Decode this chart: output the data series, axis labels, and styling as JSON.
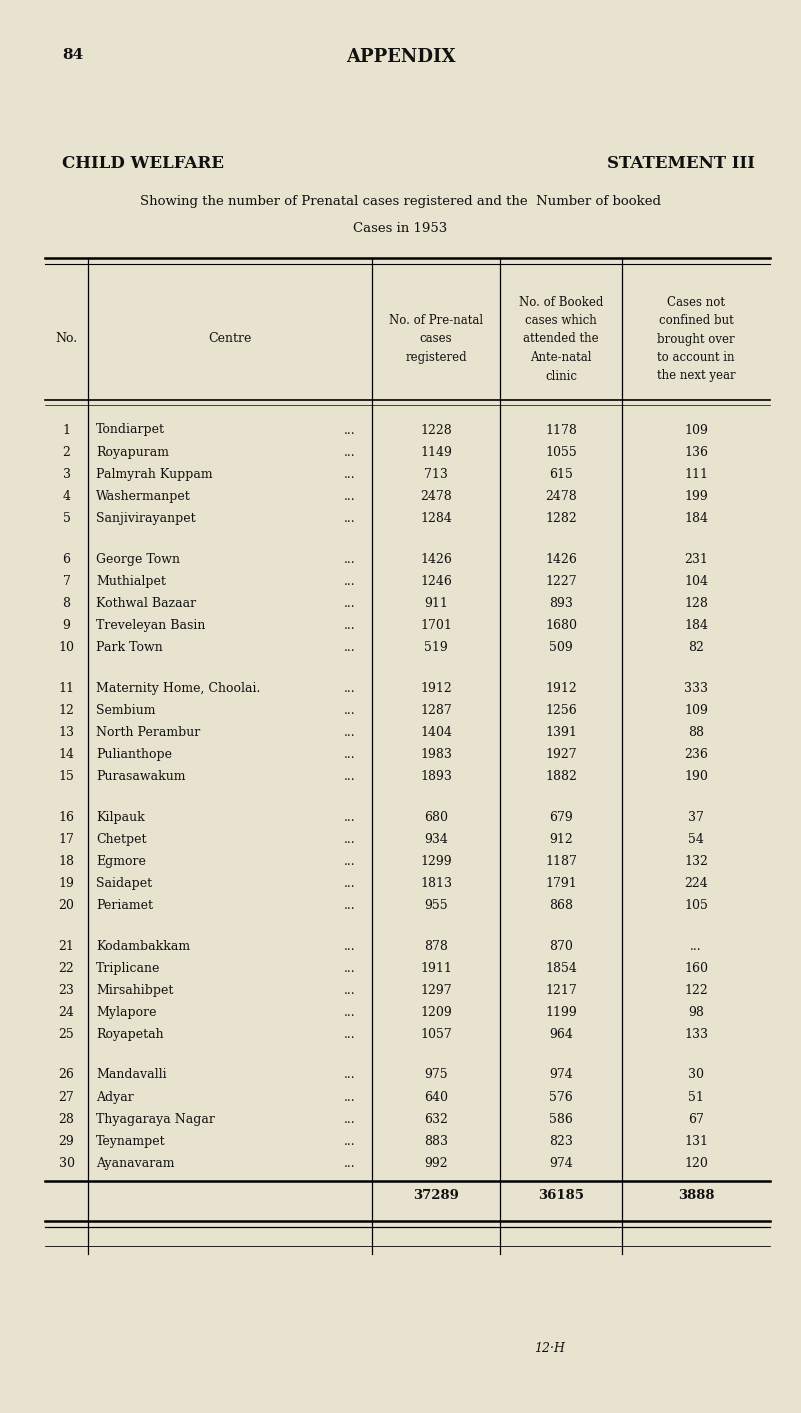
{
  "page_number": "84",
  "appendix_text": "APPENDIX",
  "header_left": "CHILD WELFARE",
  "header_right": "STATEMENT III",
  "subtitle_line1": "Showing the number of Prenatal cases registered and the  Number of booked",
  "subtitle_line2": "Cases in 1953",
  "col_header_0": "No.",
  "col_header_1": "Centre",
  "col_header_2_lines": [
    "No. of Pre-natal",
    "cases",
    "registered"
  ],
  "col_header_3_lines": [
    "No. of Booked",
    "cases which",
    "attended the",
    "Ante-natal",
    "clinic"
  ],
  "col_header_4_lines": [
    "Cases not",
    "confined but",
    "brought over",
    "to account in",
    "the next year"
  ],
  "rows": [
    [
      1,
      "Tondiarpet",
      "1228",
      "1178",
      "109"
    ],
    [
      2,
      "Royapuram",
      "1149",
      "1055",
      "136"
    ],
    [
      3,
      "Palmyrah Kuppam",
      "713",
      "615",
      "111"
    ],
    [
      4,
      "Washermanpet",
      "2478",
      "2478",
      "199"
    ],
    [
      5,
      "Sanjivirayanpet",
      "1284",
      "1282",
      "184"
    ],
    [
      6,
      "George Town",
      "1426",
      "1426",
      "231"
    ],
    [
      7,
      "Muthialpet",
      "1246",
      "1227",
      "104"
    ],
    [
      8,
      "Kothwal Bazaar",
      "911",
      "893",
      "128"
    ],
    [
      9,
      "Treveleyan Basin",
      "1701",
      "1680",
      "184"
    ],
    [
      10,
      "Park Town",
      "519",
      "509",
      "82"
    ],
    [
      11,
      "Maternity Home, Choolai.",
      "1912",
      "1912",
      "333"
    ],
    [
      12,
      "Sembium",
      "1287",
      "1256",
      "109"
    ],
    [
      13,
      "North Perambur",
      "1404",
      "1391",
      "88"
    ],
    [
      14,
      "Pulianthope",
      "1983",
      "1927",
      "236"
    ],
    [
      15,
      "Purasawakum",
      "1893",
      "1882",
      "190"
    ],
    [
      16,
      "Kilpauk",
      "680",
      "679",
      "37"
    ],
    [
      17,
      "Chetpet",
      "934",
      "912",
      "54"
    ],
    [
      18,
      "Egmore",
      "1299",
      "1187",
      "132"
    ],
    [
      19,
      "Saidapet",
      "1813",
      "1791",
      "224"
    ],
    [
      20,
      "Periamet",
      "955",
      "868",
      "105"
    ],
    [
      21,
      "Kodambakkam",
      "878",
      "870",
      "..."
    ],
    [
      22,
      "Triplicane",
      "1911",
      "1854",
      "160"
    ],
    [
      23,
      "Mirsahibpet",
      "1297",
      "1217",
      "122"
    ],
    [
      24,
      "Mylapore",
      "1209",
      "1199",
      "98"
    ],
    [
      25,
      "Royapetah",
      "1057",
      "964",
      "133"
    ],
    [
      26,
      "Mandavalli",
      "975",
      "974",
      "30"
    ],
    [
      27,
      "Adyar",
      "640",
      "576",
      "51"
    ],
    [
      28,
      "Thyagaraya Nagar",
      "632",
      "586",
      "67"
    ],
    [
      29,
      "Teynampet",
      "883",
      "823",
      "131"
    ],
    [
      30,
      "Ayanavaram",
      "992",
      "974",
      "120"
    ]
  ],
  "totals_col2": "37289",
  "totals_col3": "36185",
  "totals_col4": "3888",
  "group_breaks": [
    5,
    10,
    15,
    20,
    25
  ],
  "background_color": "#e8e3ce",
  "text_color": "#111111",
  "footer_text": "12·H",
  "fig_width": 8.01,
  "fig_height": 14.13,
  "dpi": 100
}
